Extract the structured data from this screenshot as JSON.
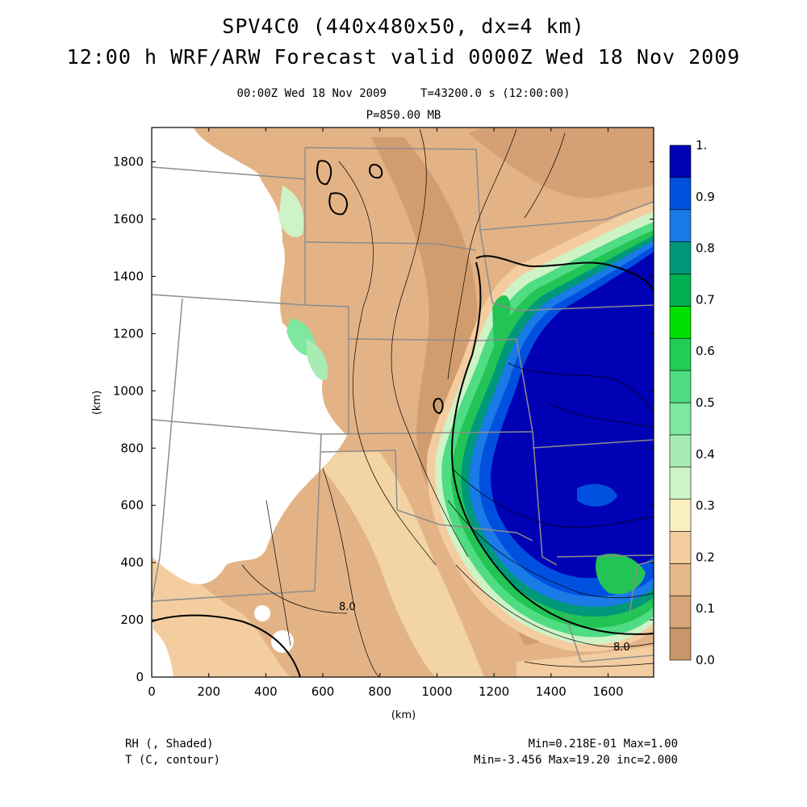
{
  "title_line1": "SPV4C0 (440x480x50, dx=4 km)",
  "title_line2": "12:00 h WRF/ARW Forecast valid 0000Z Wed 18 Nov 2009",
  "valid_line": "00:00Z Wed 18 Nov 2009     T=43200.0 s (12:00:00)",
  "level_line": "P=850.00 MB",
  "x_axis": {
    "label": "(km)",
    "ticks": [
      "0",
      "200",
      "400",
      "600",
      "800",
      "1000",
      "1200",
      "1400",
      "1600"
    ]
  },
  "y_axis": {
    "label": "(km)",
    "ticks": [
      "0",
      "200",
      "400",
      "600",
      "800",
      "1000",
      "1200",
      "1400",
      "1600",
      "1800"
    ]
  },
  "colorbar": {
    "labels": [
      "0.0",
      "0.1",
      "0.2",
      "0.3",
      "0.4",
      "0.5",
      "0.6",
      "0.7",
      "0.8",
      "0.9",
      "1."
    ],
    "colors": [
      "#c8966a",
      "#d7a57a",
      "#e6b98a",
      "#f3cda0",
      "#fbf0c0",
      "#cdf3c6",
      "#a8ecb3",
      "#7ee7a0",
      "#4fdc82",
      "#22cc55",
      "#00e000",
      "#00b050",
      "#00987a",
      "#1a7ae6",
      "#0050e0",
      "#0000b4"
    ]
  },
  "contour_labels": [
    "8.0",
    "8.0"
  ],
  "footer": {
    "left_line1": "RH (, Shaded)",
    "left_line2": "T (C, contour)",
    "right_line1": "Min=0.218E-01 Max=1.00",
    "right_line2": "Min=-3.456 Max=19.20 inc=2.000"
  },
  "colors": {
    "dry": "#e3b386",
    "dry_dark": "#cf9a6c",
    "moist_light": "#f5d9aa",
    "green": "#22c455",
    "blue_deep": "#0000b4",
    "blue_mid": "#0050e0",
    "borders": "#8c8c8c"
  }
}
